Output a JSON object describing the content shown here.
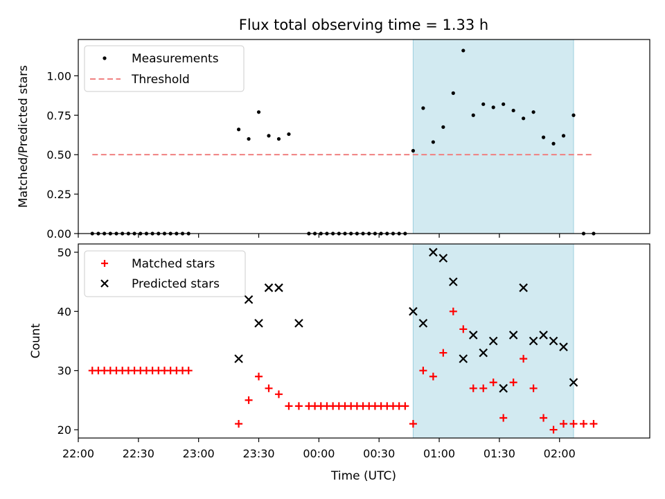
{
  "chart_data": [
    {
      "type": "scatter",
      "title": "Flux total observing time = 1.33 h",
      "xlabel": "",
      "ylabel": "Matched/Predicted stars",
      "xlim": [
        "22:00",
        "02:45"
      ],
      "ylim": [
        0,
        1.23
      ],
      "yticks": [
        "0.00",
        "0.25",
        "0.50",
        "0.75",
        "1.00"
      ],
      "legend_position": "top-left",
      "highlight_span": {
        "start": "00:47",
        "end": "02:07",
        "color": "#add8e6"
      },
      "series": [
        {
          "name": "Measurements",
          "marker": "dot",
          "color": "#000000",
          "x": [
            "22:07",
            "22:10",
            "22:13",
            "22:16",
            "22:19",
            "22:22",
            "22:25",
            "22:28",
            "22:31",
            "22:34",
            "22:37",
            "22:40",
            "22:43",
            "22:46",
            "22:49",
            "22:52",
            "22:55",
            "23:20",
            "23:25",
            "23:30",
            "23:35",
            "23:40",
            "23:45",
            "23:55",
            "23:58",
            "00:01",
            "00:04",
            "00:07",
            "00:10",
            "00:13",
            "00:16",
            "00:19",
            "00:22",
            "00:25",
            "00:28",
            "00:31",
            "00:34",
            "00:37",
            "00:40",
            "00:43",
            "00:47",
            "00:52",
            "00:57",
            "01:02",
            "01:07",
            "01:12",
            "01:17",
            "01:22",
            "01:27",
            "01:32",
            "01:37",
            "01:42",
            "01:47",
            "01:52",
            "01:57",
            "02:02",
            "02:07",
            "02:12",
            "02:17"
          ],
          "y": [
            0,
            0,
            0,
            0,
            0,
            0,
            0,
            0,
            0,
            0,
            0,
            0,
            0,
            0,
            0,
            0,
            0,
            0.66,
            0.6,
            0.77,
            0.62,
            0.6,
            0.63,
            0,
            0,
            0,
            0,
            0,
            0,
            0,
            0,
            0,
            0,
            0,
            0,
            0,
            0,
            0,
            0,
            0,
            0.525,
            0.795,
            0.58,
            0.675,
            0.89,
            1.16,
            0.75,
            0.82,
            0.8,
            0.82,
            0.78,
            0.73,
            0.77,
            0.61,
            0.57,
            0.62,
            0.75,
            0,
            0
          ]
        },
        {
          "name": "Threshold",
          "marker": "dashed-line",
          "color": "#f08080",
          "x": [
            "22:07",
            "02:17"
          ],
          "y": [
            0.5,
            0.5
          ]
        }
      ]
    },
    {
      "type": "scatter",
      "title": "",
      "xlabel": "Time (UTC)",
      "ylabel": "Count",
      "xlim": [
        "22:00",
        "02:45"
      ],
      "ylim": [
        18.6,
        51.4
      ],
      "yticks": [
        "20",
        "30",
        "40",
        "50"
      ],
      "xticks": [
        "22:00",
        "22:30",
        "23:00",
        "23:30",
        "00:00",
        "00:30",
        "01:00",
        "01:30",
        "02:00"
      ],
      "legend_position": "top-left",
      "highlight_span": {
        "start": "00:47",
        "end": "02:07",
        "color": "#add8e6"
      },
      "series": [
        {
          "name": "Matched stars",
          "marker": "plus",
          "color": "#ff0000",
          "x": [
            "22:07",
            "22:10",
            "22:13",
            "22:16",
            "22:19",
            "22:22",
            "22:25",
            "22:28",
            "22:31",
            "22:34",
            "22:37",
            "22:40",
            "22:43",
            "22:46",
            "22:49",
            "22:52",
            "22:55",
            "23:20",
            "23:25",
            "23:30",
            "23:35",
            "23:40",
            "23:45",
            "23:50",
            "23:55",
            "23:58",
            "00:01",
            "00:04",
            "00:07",
            "00:10",
            "00:13",
            "00:16",
            "00:19",
            "00:22",
            "00:25",
            "00:28",
            "00:31",
            "00:34",
            "00:37",
            "00:40",
            "00:43",
            "00:47",
            "00:52",
            "00:57",
            "01:02",
            "01:07",
            "01:12",
            "01:17",
            "01:22",
            "01:27",
            "01:32",
            "01:37",
            "01:42",
            "01:47",
            "01:52",
            "01:57",
            "02:02",
            "02:07",
            "02:12",
            "02:17"
          ],
          "y": [
            30,
            30,
            30,
            30,
            30,
            30,
            30,
            30,
            30,
            30,
            30,
            30,
            30,
            30,
            30,
            30,
            30,
            21,
            25,
            29,
            27,
            26,
            24,
            24,
            24,
            24,
            24,
            24,
            24,
            24,
            24,
            24,
            24,
            24,
            24,
            24,
            24,
            24,
            24,
            24,
            24,
            21,
            30,
            29,
            33,
            40,
            37,
            27,
            27,
            28,
            22,
            28,
            32,
            27,
            22,
            20,
            21,
            21,
            21,
            21
          ]
        },
        {
          "name": "Predicted stars",
          "marker": "x",
          "color": "#000000",
          "x": [
            "23:20",
            "23:25",
            "23:30",
            "23:35",
            "23:40",
            "23:50",
            "00:47",
            "00:52",
            "00:57",
            "01:02",
            "01:07",
            "01:12",
            "01:17",
            "01:22",
            "01:27",
            "01:32",
            "01:37",
            "01:42",
            "01:47",
            "01:52",
            "01:57",
            "02:02",
            "02:07"
          ],
          "y": [
            32,
            42,
            38,
            44,
            44,
            38,
            40,
            38,
            50,
            49,
            45,
            32,
            36,
            33,
            35,
            27,
            36,
            44,
            35,
            36,
            35,
            34,
            28
          ]
        }
      ]
    }
  ]
}
